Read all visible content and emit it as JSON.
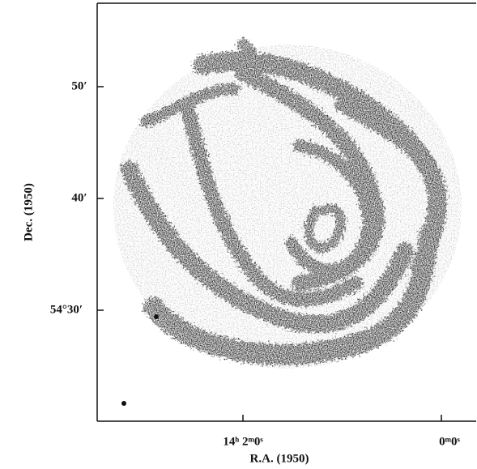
{
  "figure": {
    "y_ticks": [
      "50′",
      "40′",
      "54°30′"
    ],
    "x_ticks": [
      "14ʰ 2ᵐ0ˢ",
      "0ᵐ0ˢ"
    ],
    "y_label": "Dec. (1950)",
    "x_label": "R.A. (1950)"
  }
}
